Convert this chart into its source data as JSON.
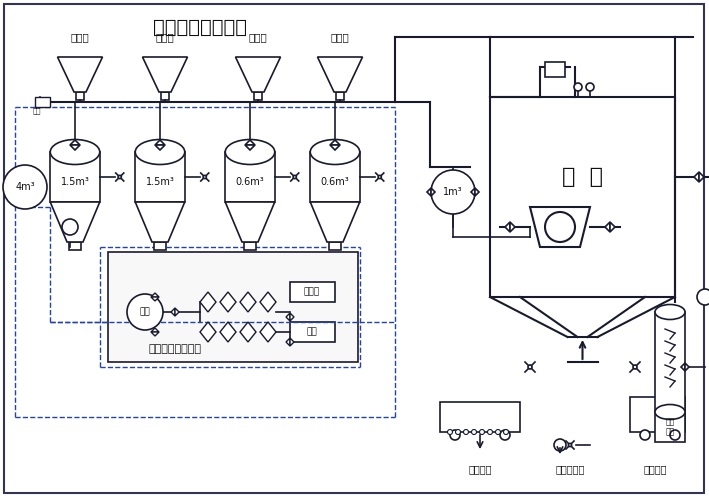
{
  "title": "浓相气力输送系统",
  "bg_color": "#ffffff",
  "line_color": "#1a1a2e",
  "dashed_color": "#2244aa",
  "text_color": "#111111",
  "hui_ku_text": "灰  库",
  "system_text": "气力输送供气系统",
  "tank_labels": [
    "1.5m³",
    "1.5m³",
    "0.6m³",
    "0.6m³"
  ],
  "field_labels": [
    "一电场",
    "二电场",
    "三电场",
    "四电场"
  ],
  "bottom_labels": [
    "湿灰装车",
    "压力水进口",
    "干灰装车"
  ],
  "small_tank_label": "1m³",
  "left_tank_label": "4m³",
  "figsize": [
    7.09,
    4.97
  ],
  "dpi": 100
}
